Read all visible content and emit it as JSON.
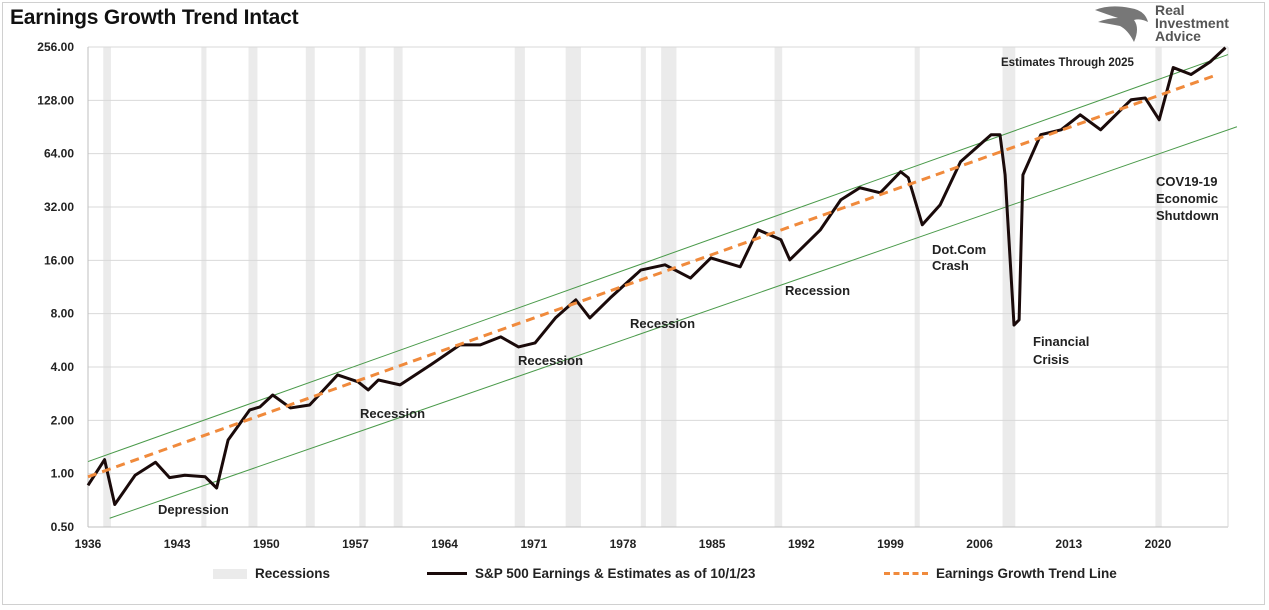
{
  "title": "Earnings Growth Trend Intact",
  "logo": {
    "text": "Real Investment Advice"
  },
  "chart_data": {
    "type": "line",
    "title": "Earnings Growth Trend Intact",
    "xlabel": "",
    "ylabel": "",
    "y_scale": "log2",
    "ylim": [
      0.5,
      256
    ],
    "xlim": [
      1936,
      2025.5
    ],
    "y_ticks": [
      "256.00",
      "128.00",
      "64.00",
      "32.00",
      "16.00",
      "8.00",
      "4.00",
      "2.00",
      "1.00",
      "0.50"
    ],
    "y_tick_values": [
      256,
      128,
      64,
      32,
      16,
      8,
      4,
      2,
      1,
      0.5
    ],
    "x_ticks": [
      "1936",
      "1943",
      "1950",
      "1957",
      "1964",
      "1971",
      "1978",
      "1985",
      "1992",
      "1999",
      "2006",
      "2013",
      "2020"
    ],
    "grid": "horizontal",
    "legend_position": "bottom",
    "colors": {
      "earnings": "#1a0a0a",
      "trend": "#f08a3c",
      "channel": "#4a9a4a",
      "recession": "#ebebeb"
    },
    "recessions": [
      [
        1937.2,
        1937.8
      ],
      [
        1944.9,
        1945.3
      ],
      [
        1948.6,
        1949.3
      ],
      [
        1953.1,
        1953.8
      ],
      [
        1957.3,
        1957.8
      ],
      [
        1960.0,
        1960.7
      ],
      [
        1969.5,
        1970.3
      ],
      [
        1973.5,
        1974.7
      ],
      [
        1979.4,
        1979.8
      ],
      [
        1981.0,
        1982.2
      ],
      [
        1989.9,
        1990.5
      ],
      [
        2000.9,
        2001.3
      ],
      [
        2007.8,
        2008.8
      ],
      [
        2019.8,
        2020.3
      ]
    ],
    "series": [
      {
        "name": "S&P 500 Earnings & Estimates as of 10/1/23",
        "x": [
          1936.0,
          1937.3,
          1938.1,
          1939.7,
          1941.3,
          1942.4,
          1943.6,
          1945.2,
          1946.1,
          1947.0,
          1948.7,
          1949.5,
          1950.5,
          1951.9,
          1953.4,
          1955.6,
          1957.2,
          1958.0,
          1958.8,
          1960.5,
          1962.9,
          1965.2,
          1966.8,
          1968.4,
          1969.8,
          1971.1,
          1972.7,
          1974.3,
          1975.4,
          1977.0,
          1979.4,
          1981.3,
          1983.3,
          1984.9,
          1987.2,
          1988.6,
          1990.4,
          1991.1,
          1993.5,
          1995.1,
          1996.6,
          1998.2,
          1999.8,
          2000.4,
          2001.5,
          2002.9,
          2004.5,
          2006.9,
          2007.6,
          2008.0,
          2008.7,
          2009.1,
          2009.4,
          2010.8,
          2012.4,
          2013.9,
          2015.5,
          2017.9,
          2019.0,
          2020.1,
          2021.2,
          2022.6,
          2024.1,
          2025.3
        ],
        "values": [
          0.86,
          1.2,
          0.67,
          0.98,
          1.16,
          0.95,
          0.98,
          0.96,
          0.83,
          1.55,
          2.29,
          2.38,
          2.78,
          2.35,
          2.44,
          3.61,
          3.3,
          2.97,
          3.38,
          3.17,
          4.11,
          5.33,
          5.33,
          5.92,
          5.19,
          5.47,
          7.57,
          9.57,
          7.57,
          9.82,
          14.1,
          15.1,
          12.7,
          16.5,
          14.7,
          23.8,
          20.9,
          16.1,
          23.8,
          35.1,
          41.1,
          38.5,
          50.6,
          46.8,
          25.4,
          32.9,
          57.6,
          81.9,
          81.9,
          48.6,
          6.9,
          7.38,
          48.6,
          81.9,
          87.3,
          106,
          87.3,
          129,
          132,
          99.4,
          196,
          179,
          211,
          254
        ]
      },
      {
        "name": "Earnings Growth Trend Line",
        "x": [
          1936.0,
          2024.4
        ],
        "values": [
          0.96,
          176
        ]
      },
      {
        "x": [
          1936.0,
          2025.5
        ],
        "values": [
          1.17,
          232
        ]
      },
      {
        "x": [
          1937.7,
          2026.2
        ],
        "values": [
          0.56,
          90.8
        ]
      }
    ],
    "annotations": [
      "Depression",
      "Recession",
      "Recession",
      "Recession",
      "Recession",
      "Recession",
      "Dot.Com",
      "Crash",
      "Financial",
      "Crisis",
      "COV19-19",
      "Economic",
      "Shutdown",
      "Estimates Through 2025"
    ]
  },
  "legend": {
    "recessions": "Recessions",
    "earnings": "S&P 500 Earnings & Estimates as of 10/1/23",
    "trend": "Earnings Growth Trend Line"
  }
}
